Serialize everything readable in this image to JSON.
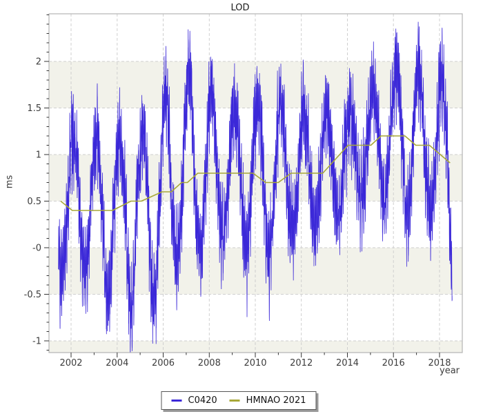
{
  "chart_data": {
    "type": "line",
    "title": "LOD",
    "xlabel": "year",
    "ylabel": "ms",
    "x_range": [
      2001.04,
      2018.99
    ],
    "y_range": [
      -1.126,
      2.511
    ],
    "x_tick_values": [
      2002,
      2004,
      2006,
      2008,
      2010,
      2012,
      2014,
      2016,
      2018
    ],
    "x_tick_labels": [
      "2002",
      "2004",
      "2006",
      "2008",
      "2010",
      "2012",
      "2014",
      "2016",
      "2018"
    ],
    "x_minor_ticks": [
      2003,
      2005,
      2007,
      2009,
      2011,
      2013,
      2015,
      2017
    ],
    "y_tick_values": [
      2,
      1.5,
      1,
      0.5,
      0,
      -0.5,
      -1
    ],
    "y_tick_labels": [
      "2",
      "1.5",
      "1",
      "0.5",
      "-0",
      "-0.5",
      "-1"
    ],
    "y_minor_step": 0.1,
    "grid": {
      "show": true,
      "dashed": true,
      "color": "#cfcfcf"
    },
    "background_bands": {
      "color": "#f2f2ea",
      "intervals": [
        [
          1.5,
          2
        ],
        [
          0.5,
          1
        ],
        [
          -0.5,
          0
        ],
        [
          -1.5,
          -1
        ]
      ]
    },
    "axis_color": "#b3b3b3",
    "tick_color": "#333333",
    "tick_label_color": "#3c3c3c",
    "legend": {
      "position": "bottom-center",
      "entries": [
        "C0420",
        "HMNAO 2021"
      ]
    },
    "series": [
      {
        "name": "C0420",
        "color": "#3b28d8",
        "style": "noisy-daily",
        "stroke_width": 0.8,
        "x_start": 2001.45,
        "x_end": 2018.55,
        "points_per_year": 365,
        "seed": 42,
        "peak_phase": 0.1,
        "trough_phase": 0.6,
        "spike_margin": 0.45,
        "tidal": [
          {
            "period_years": 0.03726,
            "amp": 0.3
          },
          {
            "period_years": 0.07452,
            "amp": 0.15
          }
        ],
        "noise_amp": 0.55,
        "yearly_envelope": [
          {
            "year": 2001,
            "trend": 0.5,
            "max": 1.62,
            "min": -0.73
          },
          {
            "year": 2002,
            "trend": 0.4,
            "max": 1.68,
            "min": -0.62
          },
          {
            "year": 2003,
            "trend": 0.4,
            "max": 1.55,
            "min": -0.98
          },
          {
            "year": 2004,
            "trend": 0.45,
            "max": 1.55,
            "min": -1.08
          },
          {
            "year": 2005,
            "trend": 0.55,
            "max": 1.73,
            "min": -1.1
          },
          {
            "year": 2006,
            "trend": 0.63,
            "max": 2.33,
            "min": -0.53
          },
          {
            "year": 2007,
            "trend": 0.75,
            "max": 2.38,
            "min": -0.47
          },
          {
            "year": 2008,
            "trend": 0.8,
            "max": 1.95,
            "min": -0.32
          },
          {
            "year": 2009,
            "trend": 0.8,
            "max": 1.86,
            "min": -0.42
          },
          {
            "year": 2010,
            "trend": 0.73,
            "max": 2.11,
            "min": -0.55
          },
          {
            "year": 2011,
            "trend": 0.74,
            "max": 1.9,
            "min": -0.26
          },
          {
            "year": 2012,
            "trend": 0.8,
            "max": 1.95,
            "min": -0.22
          },
          {
            "year": 2013,
            "trend": 0.92,
            "max": 1.85,
            "min": -0.15
          },
          {
            "year": 2014,
            "trend": 1.1,
            "max": 1.97,
            "min": -0.01
          },
          {
            "year": 2015,
            "trend": 1.16,
            "max": 2.27,
            "min": 0.05
          },
          {
            "year": 2016,
            "trend": 1.2,
            "max": 2.48,
            "min": -0.06
          },
          {
            "year": 2017,
            "trend": 1.1,
            "max": 2.28,
            "min": 0.02
          },
          {
            "year": 2018,
            "trend": 0.95,
            "max": 2.22,
            "min": -0.7
          }
        ]
      },
      {
        "name": "HMNAO 2021",
        "color": "#a8a838",
        "style": "smooth",
        "stroke_width": 1.6,
        "points": [
          [
            2001.55,
            0.5
          ],
          [
            2002.05,
            0.4
          ],
          [
            2003.8,
            0.4
          ],
          [
            2004.6,
            0.5
          ],
          [
            2005.05,
            0.5
          ],
          [
            2005.95,
            0.6
          ],
          [
            2006.35,
            0.6
          ],
          [
            2006.8,
            0.7
          ],
          [
            2007.05,
            0.7
          ],
          [
            2007.5,
            0.8
          ],
          [
            2009.9,
            0.8
          ],
          [
            2010.45,
            0.7
          ],
          [
            2011.0,
            0.7
          ],
          [
            2011.55,
            0.8
          ],
          [
            2012.93,
            0.8
          ],
          [
            2014.03,
            1.1
          ],
          [
            2015.02,
            1.1
          ],
          [
            2015.46,
            1.2
          ],
          [
            2016.5,
            1.2
          ],
          [
            2016.97,
            1.1
          ],
          [
            2017.56,
            1.1
          ],
          [
            2018.46,
            0.91
          ]
        ]
      }
    ]
  }
}
